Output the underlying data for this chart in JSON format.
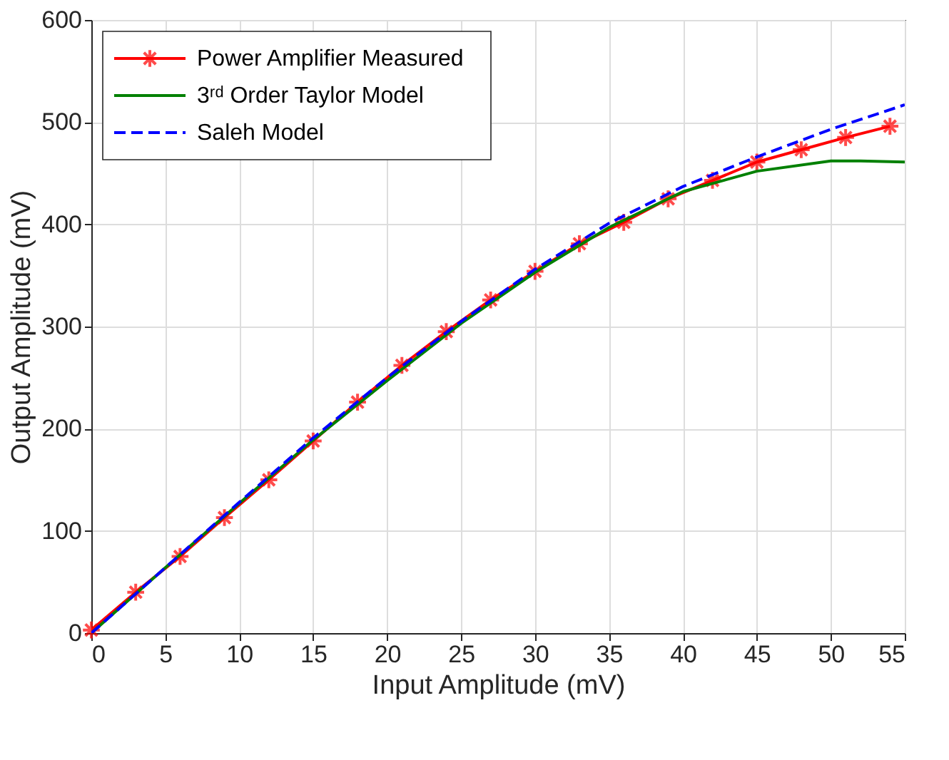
{
  "chart_data": {
    "type": "line",
    "xlabel": "Input Amplitude (mV)",
    "ylabel": "Output Amplitude (mV)",
    "xlim": [
      0,
      55
    ],
    "ylim": [
      0,
      600
    ],
    "xticks": [
      0,
      5,
      10,
      15,
      20,
      25,
      30,
      35,
      40,
      45,
      50,
      55
    ],
    "yticks": [
      0,
      100,
      200,
      300,
      400,
      500,
      600
    ],
    "grid": true,
    "legend": "top left",
    "series": [
      {
        "name": "Power Amplifier Measured",
        "color": "#ff0000",
        "marker": "cross",
        "line_style": "solid",
        "x": [
          0,
          3,
          6,
          9,
          12,
          15,
          18,
          21,
          24,
          27,
          30,
          33,
          36,
          39,
          42,
          45,
          48,
          51,
          54
        ],
        "values": [
          3,
          40,
          75,
          113,
          150,
          188,
          226,
          262,
          295,
          326,
          354,
          381,
          402,
          425,
          443,
          461,
          473,
          485,
          496
        ]
      },
      {
        "name": "3ʳᵈ Order Taylor Model",
        "color": "#008000",
        "marker": "none",
        "line_style": "solid",
        "x": [
          0,
          5,
          10,
          15,
          20,
          25,
          30,
          35,
          40,
          45,
          50,
          52,
          55
        ],
        "values": [
          0,
          64,
          127,
          189,
          247,
          303,
          353,
          397,
          432,
          452,
          462,
          462,
          461
        ]
      },
      {
        "name": "Saleh Model",
        "color": "#0000ff",
        "marker": "none",
        "line_style": "dashed",
        "x": [
          0,
          5,
          10,
          15,
          20,
          25,
          30,
          35,
          40,
          45,
          50,
          55
        ],
        "values": [
          0,
          64,
          128,
          191,
          250,
          305,
          356,
          401,
          437,
          466,
          493,
          517
        ]
      }
    ]
  }
}
